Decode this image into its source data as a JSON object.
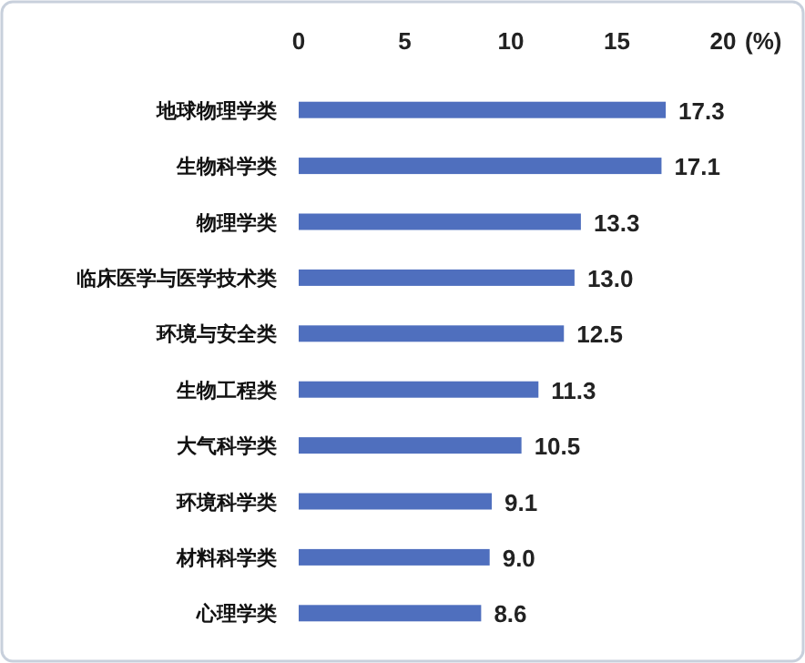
{
  "chart_data": {
    "type": "bar",
    "orientation": "horizontal",
    "xlabel": "(%)",
    "categories": [
      "地球物理学类",
      "生物科学类",
      "物理学类",
      "临床医学与医学技术类",
      "环境与安全类",
      "生物工程类",
      "大气科学类",
      "环境科学类",
      "材料科学类",
      "心理学类"
    ],
    "values": [
      17.3,
      17.1,
      13.3,
      13.0,
      12.5,
      11.3,
      10.5,
      9.1,
      9.0,
      8.6
    ],
    "value_labels": [
      "17.3",
      "17.1",
      "13.3",
      "13.0",
      "12.5",
      "11.3",
      "10.5",
      "9.1",
      "9.0",
      "8.6"
    ],
    "color": "#4f6fbe",
    "xlim": [
      0,
      20
    ],
    "xticks": [
      0,
      5,
      10,
      15,
      20
    ],
    "grid": false
  }
}
